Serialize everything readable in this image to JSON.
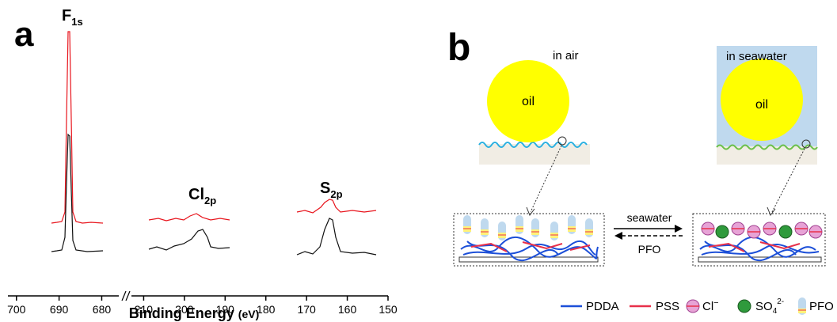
{
  "panel_a": {
    "label": "a",
    "peaks": [
      {
        "element": "F",
        "orbital": "1s"
      },
      {
        "element": "Cl",
        "orbital": "2p"
      },
      {
        "element": "S",
        "orbital": "2p"
      }
    ],
    "x_axis": {
      "title": "Binding Energy",
      "unit": "(eV)",
      "segments": [
        {
          "xlim": [
            702,
            676
          ],
          "xticks": [
            700,
            690,
            680
          ]
        },
        {
          "xlim": [
            213,
            150
          ],
          "xticks": [
            210,
            200,
            190,
            180,
            170,
            160,
            150
          ]
        }
      ]
    }
  },
  "panel_b": {
    "label": "b",
    "left": {
      "caption": "in air",
      "droplet": "oil"
    },
    "right": {
      "caption": "in seawater",
      "droplet": "oil"
    },
    "forward_arrow": "seawater",
    "back_arrow": "PFO",
    "legend": [
      {
        "label": "PDDA"
      },
      {
        "label": "PSS"
      },
      {
        "label": "Cl",
        "sup": "−"
      },
      {
        "label": "SO",
        "sub": "4",
        "sup": "2-"
      },
      {
        "label": "PFO"
      }
    ]
  }
}
